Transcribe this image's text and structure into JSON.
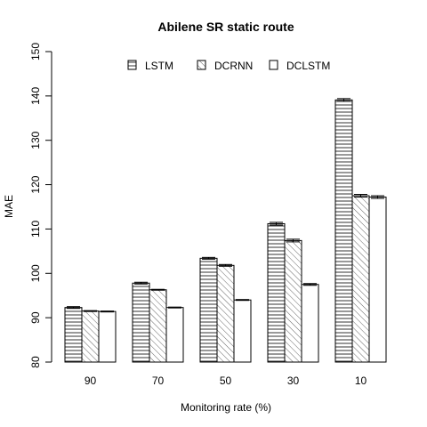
{
  "chart_data": {
    "type": "bar",
    "title": "Abilene SR static route",
    "xlabel": "Monitoring rate (%)",
    "ylabel": "MAE",
    "categories": [
      "90",
      "70",
      "50",
      "30",
      "10"
    ],
    "ylim": [
      80,
      150
    ],
    "yticks": [
      80,
      90,
      100,
      110,
      120,
      130,
      140,
      150
    ],
    "grid": false,
    "legend_position": "top",
    "series": [
      {
        "name": "LSTM",
        "pattern": "horizontal-lines",
        "values": [
          92.3,
          97.8,
          103.4,
          111.2,
          139.1
        ],
        "errors": [
          0.2,
          0.2,
          0.2,
          0.3,
          0.3
        ]
      },
      {
        "name": "DCRNN",
        "pattern": "diagonal-lines",
        "values": [
          91.5,
          96.3,
          101.8,
          107.4,
          117.5
        ],
        "errors": [
          0.1,
          0.1,
          0.2,
          0.3,
          0.3
        ]
      },
      {
        "name": "DCLSTM",
        "pattern": "solid-white",
        "values": [
          91.4,
          92.3,
          94.0,
          97.5,
          117.2
        ],
        "errors": [
          0.1,
          0.1,
          0.1,
          0.2,
          0.3
        ]
      }
    ]
  }
}
